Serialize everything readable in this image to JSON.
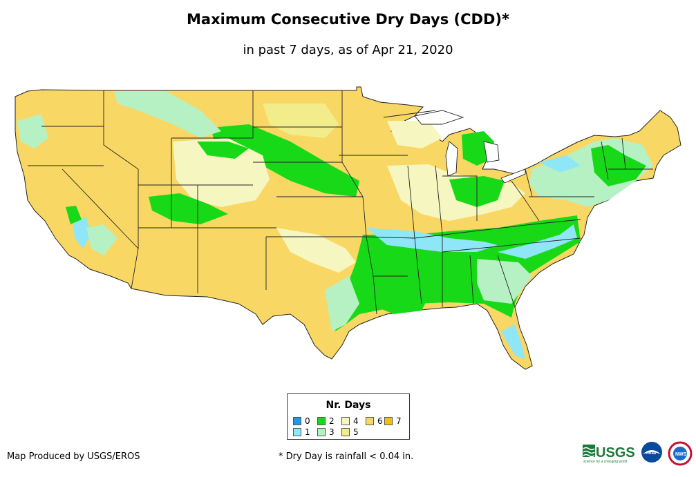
{
  "title": "Maximum Consecutive Dry Days (CDD)*",
  "subtitle": "in past 7 days, as of Apr 21, 2020",
  "legend": {
    "title": "Nr. Days",
    "items": [
      {
        "label": "0",
        "color": "#1e9be8"
      },
      {
        "label": "1",
        "color": "#8fe6f7"
      },
      {
        "label": "2",
        "color": "#18d918"
      },
      {
        "label": "3",
        "color": "#b6f1c4"
      },
      {
        "label": "4",
        "color": "#f6f6c0"
      },
      {
        "label": "5",
        "color": "#f3ec8a"
      },
      {
        "label": "6",
        "color": "#f8d765"
      },
      {
        "label": "7",
        "color": "#f3c000"
      }
    ]
  },
  "colors": {
    "land_base": "#f8d765",
    "state_border": "#222222",
    "wet_green": "#18d918",
    "light_blue": "#8fe6f7",
    "pale_green": "#b6f1c4",
    "pale_yellow": "#f6f6c0",
    "yellow5": "#f3ec8a"
  },
  "footer": {
    "producer": "Map Produced by USGS/EROS",
    "note": "* Dry Day is rainfall < 0.04 in."
  },
  "logos": {
    "usgs_text": "USGS",
    "usgs_tagline": "science for a changing world",
    "noaa_text": "noaa",
    "nws_text": "NWS"
  }
}
